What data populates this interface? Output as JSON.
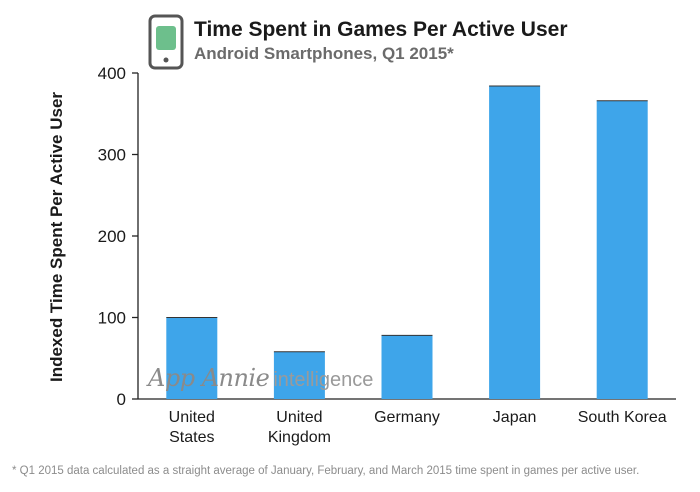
{
  "header": {
    "icon": "smartphone-icon",
    "icon_colors": {
      "body": "#ffffff",
      "frame": "#555555",
      "screen": "#6dbf8c",
      "button": "#555555"
    }
  },
  "footnote": "* Q1 2015 data calculated as a straight average of January, February, and March 2015 time spent in games per active user.",
  "watermark": {
    "brand": "App Annie",
    "suffix": "intelligence"
  },
  "chart_data": {
    "type": "bar",
    "title": "Time Spent in Games Per Active User",
    "subtitle": "Android Smartphones, Q1 2015*",
    "ylabel": "Indexed Time Spent Per Active User",
    "xlabel": "",
    "ylim": [
      0,
      400
    ],
    "yticks": [
      0,
      100,
      200,
      300,
      400
    ],
    "categories": [
      [
        "United",
        "States"
      ],
      [
        "United",
        "Kingdom"
      ],
      [
        "Germany"
      ],
      [
        "Japan"
      ],
      [
        "South Korea"
      ]
    ],
    "values": [
      100,
      58,
      78,
      384,
      366
    ],
    "bar_color": "#3ea5ea",
    "grid": false,
    "legend": "none"
  }
}
